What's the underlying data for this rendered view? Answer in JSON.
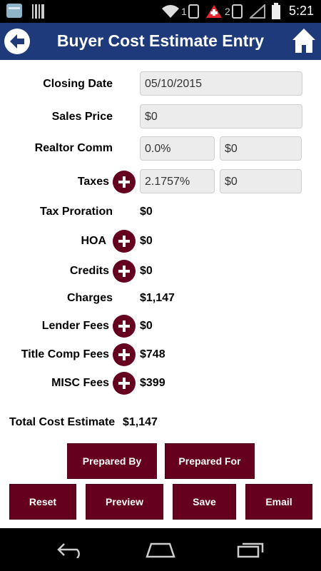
{
  "status": {
    "time": "5:21",
    "sim1": "1",
    "sim2": "2"
  },
  "header": {
    "title": "Buyer Cost Estimate Entry"
  },
  "form": {
    "closing_date": {
      "label": "Closing Date",
      "value": "05/10/2015"
    },
    "sales_price": {
      "label": "Sales Price",
      "value": "$0"
    },
    "realtor_comm": {
      "label": "Realtor Comm",
      "percent": "0.0%",
      "amount": "$0"
    },
    "taxes": {
      "label": "Taxes",
      "percent": "2.1757%",
      "amount": "$0"
    },
    "tax_proration": {
      "label": "Tax Proration",
      "value": "$0"
    },
    "hoa": {
      "label": "HOA",
      "value": "$0"
    },
    "credits": {
      "label": "Credits",
      "value": "$0"
    },
    "charges": {
      "label": "Charges",
      "value": "$1,147"
    },
    "lender_fees": {
      "label": "Lender Fees",
      "value": "$0"
    },
    "title_comp_fees": {
      "label": "Title Comp Fees",
      "value": "$748"
    },
    "misc_fees": {
      "label": "MISC Fees",
      "value": "$399"
    }
  },
  "total": {
    "label": "Total Cost Estimate",
    "value": "$1,147"
  },
  "buttons": {
    "prepared_by": "Prepared By",
    "prepared_for": "Prepared For",
    "reset": "Reset",
    "preview": "Preview",
    "save": "Save",
    "email": "Email"
  },
  "colors": {
    "appbar": "#1e3a7b",
    "button": "#66001f"
  }
}
